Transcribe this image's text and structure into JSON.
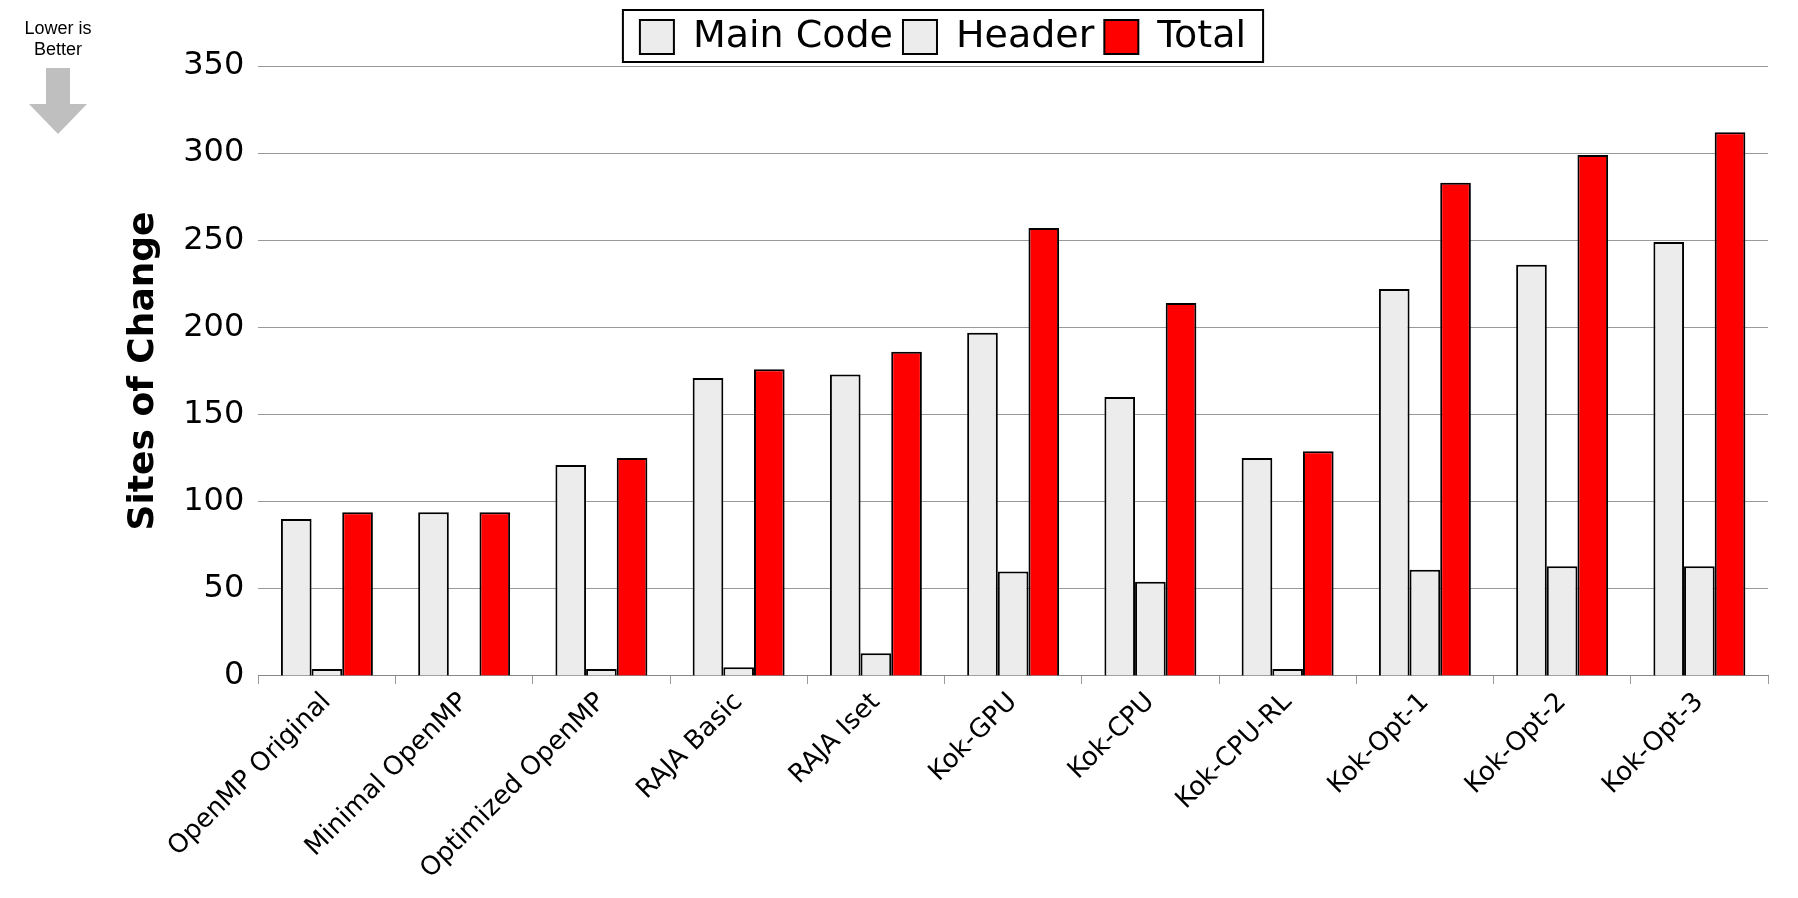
{
  "chart_data": {
    "type": "bar",
    "ylabel": "Sites of Change",
    "categories": [
      "OpenMP Original",
      "Minimal OpenMP",
      "Optimized OpenMP",
      "RAJA Basic",
      "RAJA Iset",
      "Kok-GPU",
      "Kok-CPU",
      "Kok-CPU-RL",
      "Kok-Opt-1",
      "Kok-Opt-2",
      "Kok-Opt-3"
    ],
    "series": [
      {
        "name": "Main Code",
        "color": "#ececec",
        "values": [
          90,
          94,
          121,
          171,
          173,
          197,
          160,
          125,
          222,
          236,
          249
        ]
      },
      {
        "name": "Header",
        "color": "#ececec",
        "values": [
          4,
          0,
          4,
          5,
          13,
          60,
          54,
          4,
          61,
          63,
          63
        ]
      },
      {
        "name": "Total",
        "color": "#ff0000",
        "values": [
          94,
          94,
          125,
          176,
          186,
          257,
          214,
          129,
          283,
          299,
          312
        ]
      }
    ],
    "ylim": [
      0,
      350
    ],
    "yticks": [
      0,
      50,
      100,
      150,
      200,
      250,
      300,
      350
    ],
    "grid": "y",
    "legend": "top",
    "annotations": [
      "Lower is Better"
    ]
  }
}
